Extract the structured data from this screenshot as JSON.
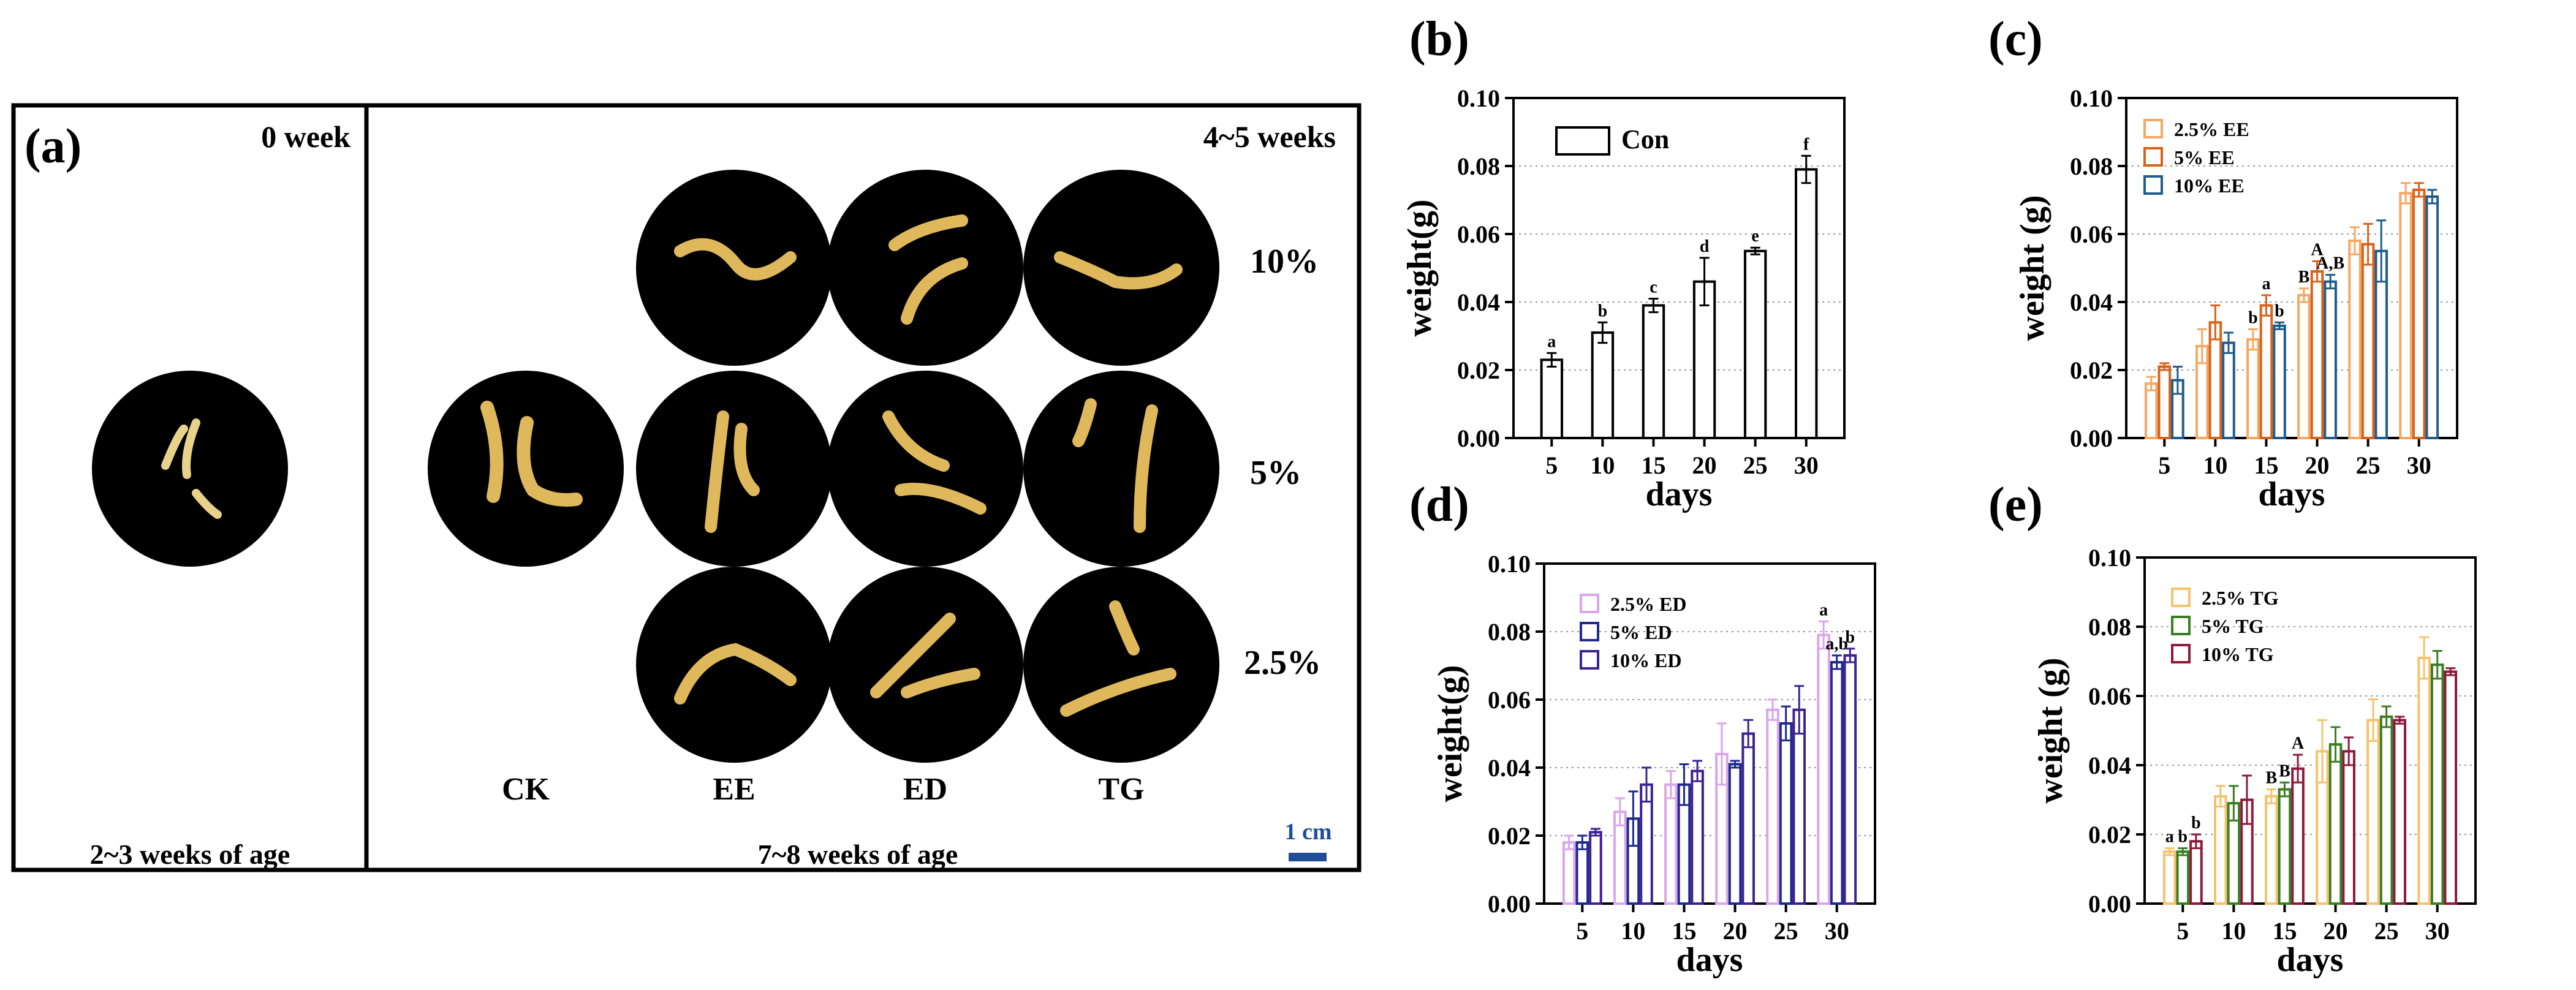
{
  "panel_a": {
    "label": "(a)",
    "left_top": "0 week",
    "left_bottom": "2~3 weeks of age",
    "right_top": "4~5 weeks",
    "right_bottom": "7~8 weeks of age",
    "row_labels": [
      "10%",
      "5%",
      "2.5%"
    ],
    "col_labels": [
      "CK",
      "EE",
      "ED",
      "TG"
    ],
    "scale": "1 cm",
    "scale_color": "#1f4e96"
  },
  "chart_data": [
    {
      "panel": "(b)",
      "type": "bar",
      "xlabel": "days",
      "ylabel": "weight(g)",
      "categories": [
        "5",
        "10",
        "15",
        "20",
        "25",
        "30"
      ],
      "ylim": [
        0,
        0.1
      ],
      "yticks": [
        "0.00",
        "0.02",
        "0.04",
        "0.06",
        "0.08",
        "0.10"
      ],
      "legend_position": "top-left",
      "grid": "y-dotted",
      "series": [
        {
          "name": "Con",
          "color": "#000000",
          "values": [
            0.023,
            0.031,
            0.039,
            0.046,
            0.055,
            0.079
          ],
          "errors": [
            0.002,
            0.003,
            0.002,
            0.007,
            0.001,
            0.004
          ],
          "letters": [
            "a",
            "b",
            "c",
            "d",
            "e",
            "f"
          ]
        }
      ]
    },
    {
      "panel": "(c)",
      "type": "bar",
      "xlabel": "days",
      "ylabel": "weight (g)",
      "categories": [
        "5",
        "10",
        "15",
        "20",
        "25",
        "30"
      ],
      "ylim": [
        0,
        0.1
      ],
      "yticks": [
        "0.00",
        "0.02",
        "0.04",
        "0.06",
        "0.08",
        "0.10"
      ],
      "legend_position": "top-left",
      "grid": "y-dotted",
      "series": [
        {
          "name": "2.5% EE",
          "color": "#f5a862",
          "values": [
            0.016,
            0.027,
            0.029,
            0.042,
            0.058,
            0.072
          ],
          "errors": [
            0.002,
            0.005,
            0.003,
            0.002,
            0.004,
            0.003
          ],
          "letters": [
            "",
            "",
            "b",
            "B",
            "",
            ""
          ]
        },
        {
          "name": "5% EE",
          "color": "#d9621a",
          "values": [
            0.021,
            0.034,
            0.039,
            0.049,
            0.057,
            0.073
          ],
          "errors": [
            0.001,
            0.005,
            0.003,
            0.003,
            0.006,
            0.002
          ],
          "letters": [
            "",
            "",
            "a",
            "A",
            "",
            ""
          ]
        },
        {
          "name": "10% EE",
          "color": "#1f5d8c",
          "values": [
            0.017,
            0.028,
            0.033,
            0.046,
            0.055,
            0.071
          ],
          "errors": [
            0.004,
            0.003,
            0.001,
            0.002,
            0.009,
            0.002
          ],
          "letters": [
            "",
            "",
            "b",
            "A,B",
            "",
            ""
          ]
        }
      ]
    },
    {
      "panel": "(d)",
      "type": "bar",
      "xlabel": "days",
      "ylabel": "weight(g)",
      "categories": [
        "5",
        "10",
        "15",
        "20",
        "25",
        "30"
      ],
      "ylim": [
        0,
        0.1
      ],
      "yticks": [
        "0.00",
        "0.02",
        "0.04",
        "0.06",
        "0.08",
        "0.10"
      ],
      "legend_position": "top-left",
      "grid": "y-dotted",
      "series": [
        {
          "name": "2.5% ED",
          "color": "#d9a6ec",
          "values": [
            0.018,
            0.027,
            0.035,
            0.044,
            0.057,
            0.079
          ],
          "errors": [
            0.002,
            0.004,
            0.004,
            0.009,
            0.003,
            0.004
          ],
          "letters": [
            "",
            "",
            "",
            "",
            "",
            "a"
          ]
        },
        {
          "name": "5% ED",
          "color": "#1f2a8c",
          "values": [
            0.018,
            0.025,
            0.035,
            0.041,
            0.053,
            0.071
          ],
          "errors": [
            0.002,
            0.008,
            0.006,
            0.001,
            0.005,
            0.002
          ],
          "letters": [
            "",
            "",
            "",
            "",
            "",
            "a,b"
          ]
        },
        {
          "name": "10% ED",
          "color": "#3d2291",
          "values": [
            0.021,
            0.035,
            0.039,
            0.05,
            0.057,
            0.073
          ],
          "errors": [
            0.001,
            0.005,
            0.003,
            0.004,
            0.007,
            0.002
          ],
          "letters": [
            "",
            "",
            "",
            "",
            "",
            "b"
          ]
        }
      ]
    },
    {
      "panel": "(e)",
      "type": "bar",
      "xlabel": "days",
      "ylabel": "weight (g)",
      "categories": [
        "5",
        "10",
        "15",
        "20",
        "25",
        "30"
      ],
      "ylim": [
        0,
        0.1
      ],
      "yticks": [
        "0.00",
        "0.02",
        "0.04",
        "0.06",
        "0.08",
        "0.10"
      ],
      "legend_position": "top-left",
      "grid": "y-dotted",
      "series": [
        {
          "name": "2.5% TG",
          "color": "#f5c36b",
          "values": [
            0.015,
            0.031,
            0.031,
            0.044,
            0.053,
            0.071
          ],
          "errors": [
            0.001,
            0.003,
            0.002,
            0.009,
            0.006,
            0.006
          ],
          "letters": [
            "a",
            "",
            "B",
            "",
            "",
            ""
          ]
        },
        {
          "name": "5% TG",
          "color": "#3a7d22",
          "values": [
            0.015,
            0.029,
            0.033,
            0.046,
            0.054,
            0.069
          ],
          "errors": [
            0.001,
            0.005,
            0.002,
            0.005,
            0.003,
            0.004
          ],
          "letters": [
            "b",
            "",
            "B",
            "",
            "",
            ""
          ]
        },
        {
          "name": "10% TG",
          "color": "#8c1a3a",
          "values": [
            0.018,
            0.03,
            0.039,
            0.044,
            0.053,
            0.067
          ],
          "errors": [
            0.002,
            0.007,
            0.004,
            0.004,
            0.001,
            0.001
          ],
          "letters": [
            "b",
            "",
            "A",
            "",
            "",
            ""
          ]
        }
      ]
    }
  ]
}
